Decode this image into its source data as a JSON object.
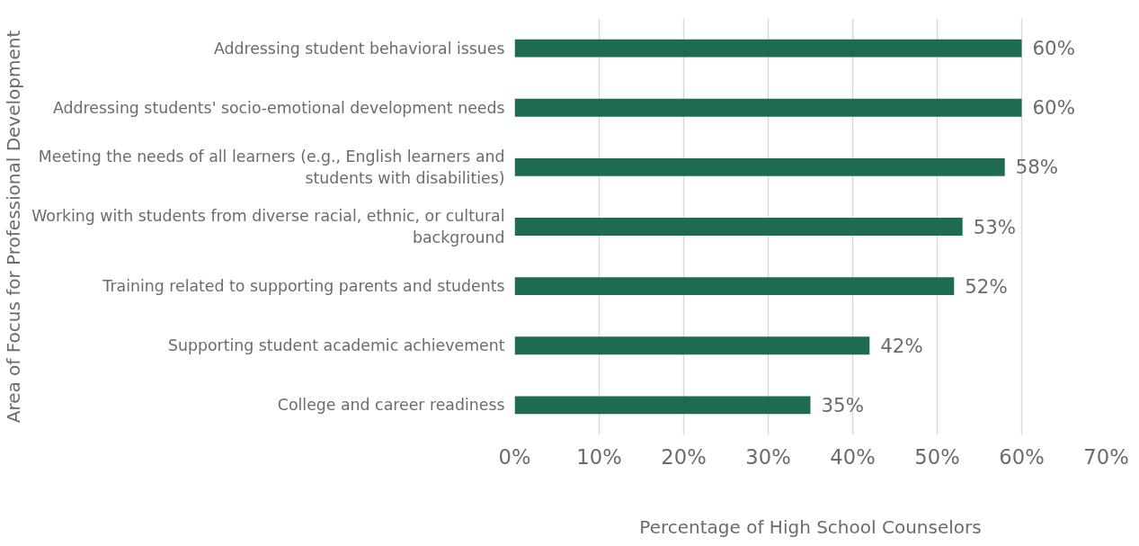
{
  "chart_data": {
    "type": "bar",
    "orientation": "horizontal",
    "xlabel": "Percentage of High School Counselors",
    "ylabel": "Area of Focus for Professional Development",
    "categories": [
      "Addressing student behavioral issues",
      "Addressing students' socio-emotional development needs",
      "Meeting the needs of all learners (e.g., English learners and students with disabilities)",
      "Working with students from diverse racial, ethnic, or cultural background",
      "Training related to supporting parents and students",
      "Supporting student academic achievement",
      "College and career readiness"
    ],
    "values": [
      60,
      60,
      58,
      53,
      52,
      42,
      35
    ],
    "value_labels": [
      "60%",
      "60%",
      "58%",
      "53%",
      "52%",
      "42%",
      "35%"
    ],
    "color": "#1e6b52",
    "xlim": [
      0,
      70
    ],
    "xticks": [
      {
        "value": 0,
        "label": "0%"
      },
      {
        "value": 10,
        "label": "10%"
      },
      {
        "value": 20,
        "label": "20%"
      },
      {
        "value": 30,
        "label": "30%"
      },
      {
        "value": 40,
        "label": "40%"
      },
      {
        "value": 50,
        "label": "50%"
      },
      {
        "value": 60,
        "label": "60%"
      },
      {
        "value": 70,
        "label": "70%"
      }
    ],
    "grid": "x"
  }
}
